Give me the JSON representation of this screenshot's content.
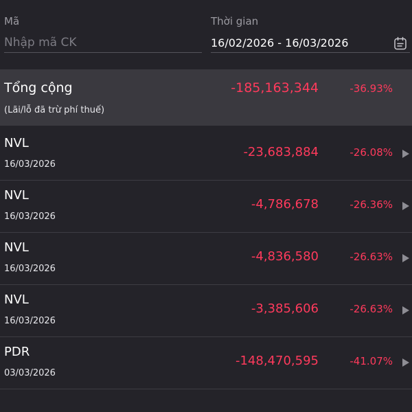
{
  "filters": {
    "code_label": "Mã",
    "code_placeholder": "Nhập mã CK",
    "time_label": "Thời gian",
    "date_range": "16/02/2026 - 16/03/2026",
    "calendar_icon": "calendar-icon"
  },
  "total": {
    "title": "Tổng cộng",
    "subtitle": "(Lãi/lỗ đã trừ phí thuế)",
    "amount": "-185,163,344",
    "percent": "-36.93%"
  },
  "rows": [
    {
      "code": "NVL",
      "date": "16/03/2026",
      "amount": "-23,683,884",
      "percent": "-26.08%"
    },
    {
      "code": "NVL",
      "date": "16/03/2026",
      "amount": "-4,786,678",
      "percent": "-26.36%"
    },
    {
      "code": "NVL",
      "date": "16/03/2026",
      "amount": "-4,836,580",
      "percent": "-26.63%"
    },
    {
      "code": "NVL",
      "date": "16/03/2026",
      "amount": "-3,385,606",
      "percent": "-26.63%"
    },
    {
      "code": "PDR",
      "date": "03/03/2026",
      "amount": "-148,470,595",
      "percent": "-41.07%"
    }
  ],
  "colors": {
    "background": "#242329",
    "total_background": "#3a393f",
    "negative": "#ff3a5c",
    "label": "#9c9ba2"
  }
}
